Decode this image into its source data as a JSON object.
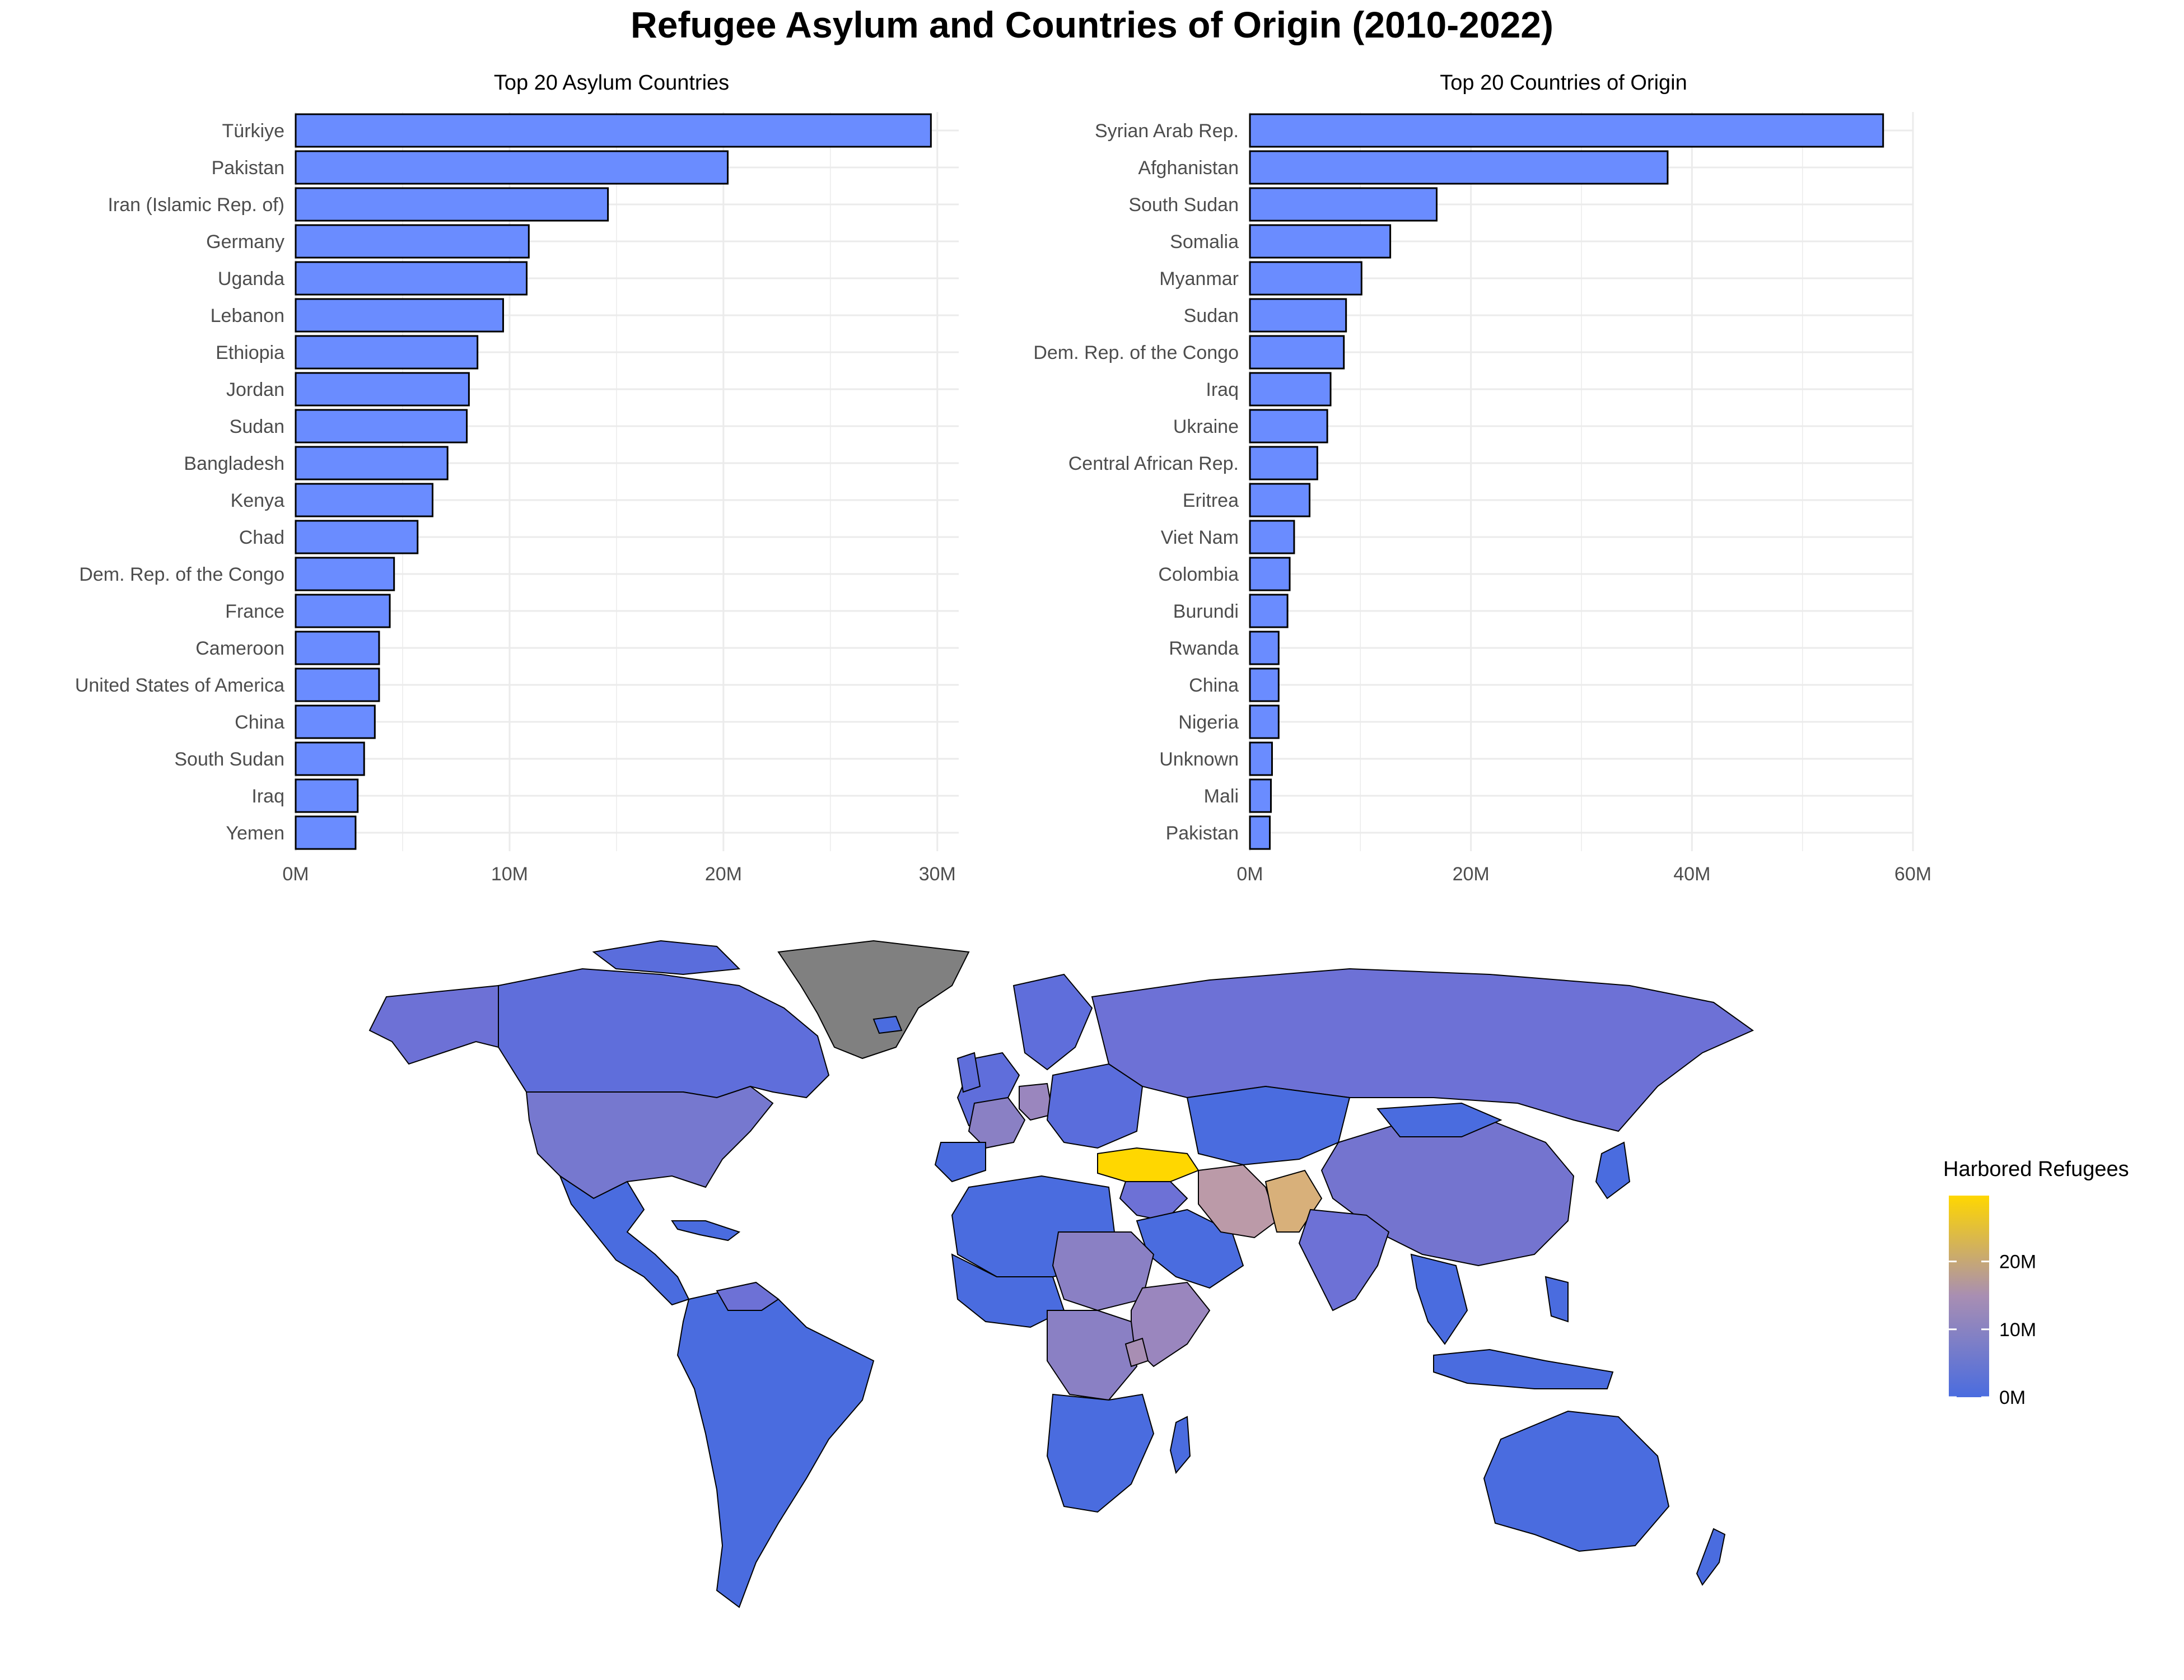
{
  "title": "Refugee Asylum and Countries of Origin (2010-2022)",
  "colors": {
    "bar_fill": "#6a8cff",
    "bar_stroke": "#000000",
    "grid": "#ebebeb",
    "map_low": "#4a6cdf",
    "map_high": "#ffd700",
    "map_missing": "#808080"
  },
  "chart_data": [
    {
      "type": "bar",
      "orientation": "horizontal",
      "title": "Top 20 Asylum Countries",
      "categories": [
        "Türkiye",
        "Pakistan",
        "Iran (Islamic Rep. of)",
        "Germany",
        "Uganda",
        "Lebanon",
        "Ethiopia",
        "Jordan",
        "Sudan",
        "Bangladesh",
        "Kenya",
        "Chad",
        "Dem. Rep. of the Congo",
        "France",
        "Cameroon",
        "United States of America",
        "China",
        "South Sudan",
        "Iraq",
        "Yemen"
      ],
      "values": [
        29.7,
        20.2,
        14.6,
        10.9,
        10.8,
        9.7,
        8.5,
        8.1,
        8.0,
        7.1,
        6.4,
        5.7,
        4.6,
        4.4,
        3.9,
        3.9,
        3.7,
        3.2,
        2.9,
        2.8
      ],
      "unit": "M",
      "xlim": [
        0,
        31
      ],
      "xticks": [
        "0M",
        "10M",
        "20M",
        "30M"
      ],
      "xtick_values": [
        0,
        10,
        20,
        30
      ],
      "xlabel": "",
      "ylabel": "",
      "grid": true
    },
    {
      "type": "bar",
      "orientation": "horizontal",
      "title": "Top 20 Countries of Origin",
      "categories": [
        "Syrian Arab Rep.",
        "Afghanistan",
        "South Sudan",
        "Somalia",
        "Myanmar",
        "Sudan",
        "Dem. Rep. of the Congo",
        "Iraq",
        "Ukraine",
        "Central African Rep.",
        "Eritrea",
        "Viet Nam",
        "Colombia",
        "Burundi",
        "Rwanda",
        "China",
        "Nigeria",
        "Unknown",
        "Mali",
        "Pakistan"
      ],
      "values": [
        57.3,
        37.8,
        16.9,
        12.7,
        10.1,
        8.7,
        8.5,
        7.3,
        7.0,
        6.1,
        5.4,
        4.0,
        3.6,
        3.4,
        2.6,
        2.6,
        2.6,
        2.0,
        1.9,
        1.8
      ],
      "unit": "M",
      "xlim": [
        0,
        60
      ],
      "xticks": [
        "0M",
        "20M",
        "40M",
        "60M"
      ],
      "xtick_values": [
        0,
        20,
        40,
        60
      ],
      "xlabel": "",
      "ylabel": "",
      "grid": true
    },
    {
      "type": "heatmap",
      "subtype": "choropleth-world-map",
      "legend_title": "Harbored Refugees",
      "legend_ticks": [
        "0M",
        "10M",
        "20M"
      ],
      "legend_tick_values": [
        0,
        10,
        20
      ],
      "legend_max": 29.7,
      "legend_placement": "right",
      "regions": [
        {
          "name": "Türkiye",
          "value": 29.7
        },
        {
          "name": "Pakistan",
          "value": 20.2
        },
        {
          "name": "Iran (Islamic Rep. of)",
          "value": 14.6
        },
        {
          "name": "Germany",
          "value": 10.9
        },
        {
          "name": "Uganda",
          "value": 10.8
        },
        {
          "name": "Ethiopia",
          "value": 8.5
        },
        {
          "name": "Sudan",
          "value": 8.0
        },
        {
          "name": "Kenya",
          "value": 6.4
        },
        {
          "name": "Chad",
          "value": 5.7
        },
        {
          "name": "Dem. Rep. of the Congo",
          "value": 4.6
        },
        {
          "name": "France",
          "value": 4.4
        },
        {
          "name": "United States of America",
          "value": 3.9
        },
        {
          "name": "China",
          "value": 3.7
        },
        {
          "name": "Russia",
          "value": 1.5
        },
        {
          "name": "India",
          "value": 2.5
        },
        {
          "name": "Canada",
          "value": 1.5
        },
        {
          "name": "Brazil",
          "value": 0.3
        },
        {
          "name": "Australia",
          "value": 0.5
        },
        {
          "name": "Greenland",
          "value": null
        }
      ]
    }
  ]
}
